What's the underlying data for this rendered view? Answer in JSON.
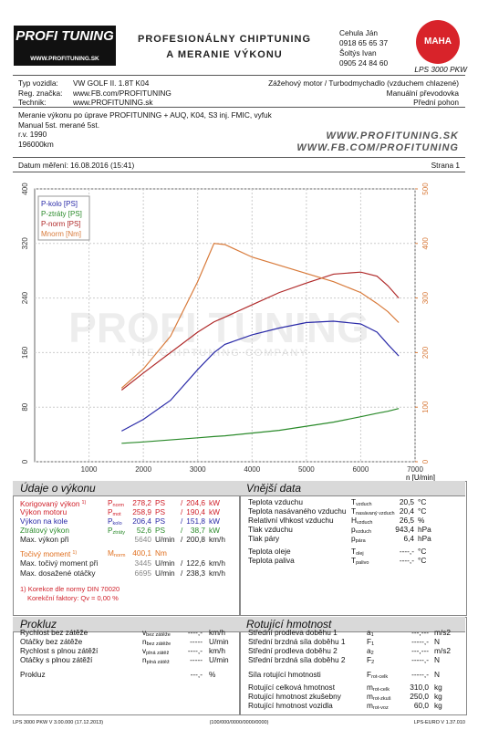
{
  "header": {
    "brand": "PROFI TUNING",
    "website": "WWW.PROFITUNING.SK",
    "tagline": [
      "Profesionálny Chiptuning",
      "a meranie výkonu"
    ],
    "contact": [
      "Cehula Ján",
      "0918 65 65 37",
      "Šoltýs Ivan",
      "0905 24 84 60"
    ],
    "maha": "MAHA",
    "model": "LPS 3000 PKW"
  },
  "vehicle": [
    [
      "Typ vozidla:",
      "VW GOLF II. 1.8T K04",
      "Zážehový motor / Turbodmychadlo (vzduchem chlazené)"
    ],
    [
      "Reg. značka:",
      "www.FB.com/PROFITUNING",
      "Manuální převodovka"
    ],
    [
      "Technik:",
      "www.PROFITUNING.sk",
      "Přední pohon"
    ]
  ],
  "description": [
    "Meranie výkonu po úprave PROFITUNING + AUQ, K04, S3 inj. FMIC, vyfuk",
    "Manual 5st. merané 5st.",
    "r.v. 1990",
    "196000km"
  ],
  "promo": [
    "WWW.PROFITUNING.SK",
    "WWW.FB.COM/PROFITUNING"
  ],
  "date": "Datum měření: 16.08.2016 (15:41)",
  "page": "Strana 1",
  "chart_data": {
    "type": "line",
    "x_label": "n [U/min]",
    "watermark": [
      "PROFI TUNING",
      "THE CHIPTUNING COMPANY"
    ],
    "x": [
      1600,
      2000,
      2500,
      3000,
      3300,
      3500,
      4000,
      4500,
      5000,
      5500,
      6000,
      6300,
      6500,
      6700
    ],
    "series": [
      {
        "name": "P-kolo [PS]",
        "color": "#2a2aa8",
        "values": [
          45,
          62,
          90,
          135,
          160,
          172,
          186,
          196,
          204,
          206,
          202,
          190,
          172,
          155
        ]
      },
      {
        "name": "P-ztráty [PS]",
        "color": "#2a8a2a",
        "values": [
          27,
          29,
          32,
          35,
          37,
          38,
          42,
          46,
          52,
          58,
          66,
          71,
          74,
          78
        ]
      },
      {
        "name": "P-norm [PS]",
        "color": "#b02a2a",
        "values": [
          105,
          130,
          160,
          190,
          205,
          212,
          230,
          248,
          262,
          275,
          278,
          272,
          258,
          240
        ]
      },
      {
        "name": "Mnorm [Nm]",
        "color": "#d87a3a",
        "axis": "y2",
        "values": [
          135,
          170,
          230,
          330,
          400,
          398,
          375,
          360,
          345,
          330,
          310,
          290,
          275,
          255
        ]
      }
    ],
    "xlim": [
      0,
      7000
    ],
    "xticks": [
      1000,
      2000,
      3000,
      4000,
      5000,
      6000,
      7000
    ],
    "ylim": [
      0,
      400
    ],
    "yticks": [
      0,
      80,
      160,
      240,
      320,
      400
    ],
    "y2lim": [
      0,
      500
    ],
    "y2ticks": [
      0,
      100,
      200,
      300,
      400,
      500
    ],
    "grid": true,
    "legend": "top-left"
  },
  "performance": {
    "title": "Údaje o výkonu",
    "rows": [
      {
        "label": "Korigovaný výkon",
        "note": "1)",
        "sym": "P",
        "sub": "norm",
        "v1": "278,2",
        "u1": "PS",
        "sep": "/",
        "v2": "204,6",
        "u2": "kW",
        "color": "#d0202a"
      },
      {
        "label": "Výkon motoru",
        "sym": "P",
        "sub": "mot",
        "v1": "258,9",
        "u1": "PS",
        "sep": "/",
        "v2": "190,4",
        "u2": "kW",
        "color": "#d0202a"
      },
      {
        "label": "Výkon na kole",
        "sym": "P",
        "sub": "kolo",
        "v1": "206,4",
        "u1": "PS",
        "sep": "/",
        "v2": "151,8",
        "u2": "kW",
        "color": "#2a2aa8"
      },
      {
        "label": "Ztrátový výkon",
        "sym": "P",
        "sub": "ztráty",
        "v1": "52,6",
        "u1": "PS",
        "sep": "/",
        "v2": "38,7",
        "u2": "kW",
        "color": "#2a8a2a"
      },
      {
        "label": "Max. výkon při",
        "v1": "5640",
        "u1": "U/min",
        "sep": "/",
        "v2": "200,8",
        "u2": "km/h",
        "color": "#222"
      },
      {
        "label": "Točivý moment",
        "note": "1)",
        "sym": "M",
        "sub": "norm",
        "v1": "400,1",
        "u1": "Nm",
        "color": "#e07020"
      },
      {
        "label": "Max. točivý moment při",
        "v1": "3445",
        "u1": "U/min",
        "sep": "/",
        "v2": "122,6",
        "u2": "km/h",
        "color": "#222"
      },
      {
        "label": "Max. dosažené otáčky",
        "v1": "6695",
        "u1": "U/min",
        "sep": "/",
        "v2": "238,3",
        "u2": "km/h",
        "color": "#222"
      }
    ],
    "notes": [
      "1) Korekce dle normy DIN 70020",
      "Korekční faktory: Qv =   0,00 %"
    ]
  },
  "external": {
    "title": "Vnější data",
    "rows": [
      {
        "label": "Teplota vzduchu",
        "sym": "T",
        "sub": "vzduch",
        "value": "20,5",
        "unit": "°C"
      },
      {
        "label": "Teplota nasávaného vzduchu",
        "sym": "T",
        "sub": "nasávaný vzduch",
        "value": "20,4",
        "unit": "°C"
      },
      {
        "label": "Relativní vlhkost vzduchu",
        "sym": "H",
        "sub": "vzduch",
        "value": "26,5",
        "unit": "%"
      },
      {
        "label": "Tlak vzduchu",
        "sym": "p",
        "sub": "vzduch",
        "value": "943,4",
        "unit": "hPa"
      },
      {
        "label": "Tlak páry",
        "sym": "p",
        "sub": "pára",
        "value": "6,4",
        "unit": "hPa"
      },
      {
        "label": "Teplota oleje",
        "sym": "T",
        "sub": "olej",
        "value": "----,-",
        "unit": "°C"
      },
      {
        "label": "Teplota paliva",
        "sym": "T",
        "sub": "palivo",
        "value": "----,-",
        "unit": "°C"
      }
    ]
  },
  "slip": {
    "title": "Prokluz",
    "rows": [
      {
        "label": "Rychlost bez zátěže",
        "sym": "v",
        "sub": "bez zátěže",
        "value": "----,-",
        "unit": "km/h"
      },
      {
        "label": "Otáčky bez zátěže",
        "sym": "n",
        "sub": "bez zátěže",
        "value": "-----",
        "unit": "U/min"
      },
      {
        "label": "Rychlost s plnou zátěží",
        "sym": "v",
        "sub": "plná zátěž",
        "value": "----,-",
        "unit": "km/h"
      },
      {
        "label": "Otáčky s plnou zátěží",
        "sym": "n",
        "sub": "plná zátěž",
        "value": "-----",
        "unit": "U/min"
      },
      {
        "label": "Prokluz",
        "value": "---,-",
        "unit": "%"
      }
    ]
  },
  "rotating": {
    "title": "Rotující hmotnost",
    "rows": [
      {
        "label": "Střední prodleva doběhu 1",
        "sym": "a",
        "sub": "1",
        "value": "---,---",
        "unit": "m/s2"
      },
      {
        "label": "Střední brzdná síla doběhu 1",
        "sym": "F",
        "sub": "1",
        "value": "-----,-",
        "unit": "N"
      },
      {
        "label": "Střední prodleva doběhu 2",
        "sym": "a",
        "sub": "2",
        "value": "---,---",
        "unit": "m/s2"
      },
      {
        "label": "Střední brzdná síla doběhu 2",
        "sym": "F",
        "sub": "2",
        "value": "-----,-",
        "unit": "N"
      },
      {
        "label": "Síla rotující hmotnosti",
        "sym": "F",
        "sub": "rot-celk",
        "value": "-----,-",
        "unit": "N"
      },
      {
        "label": "Rotující celková hmotnost",
        "sym": "m",
        "sub": "rot-celk",
        "value": "310,0",
        "unit": "kg"
      },
      {
        "label": "Rotující hmotnost zkušebny",
        "sym": "m",
        "sub": "rot-zkuš",
        "value": "250,0",
        "unit": "kg"
      },
      {
        "label": "Rotující hmotnost vozidla",
        "sym": "m",
        "sub": "rot-voz",
        "value": "60,0",
        "unit": "kg"
      }
    ]
  },
  "footer": [
    "LPS 3000 PKW V 3.00.000 (17.12.2013)",
    "(100/000/0000/0000/0000)",
    "LPS-EURO V 1.37.010"
  ]
}
